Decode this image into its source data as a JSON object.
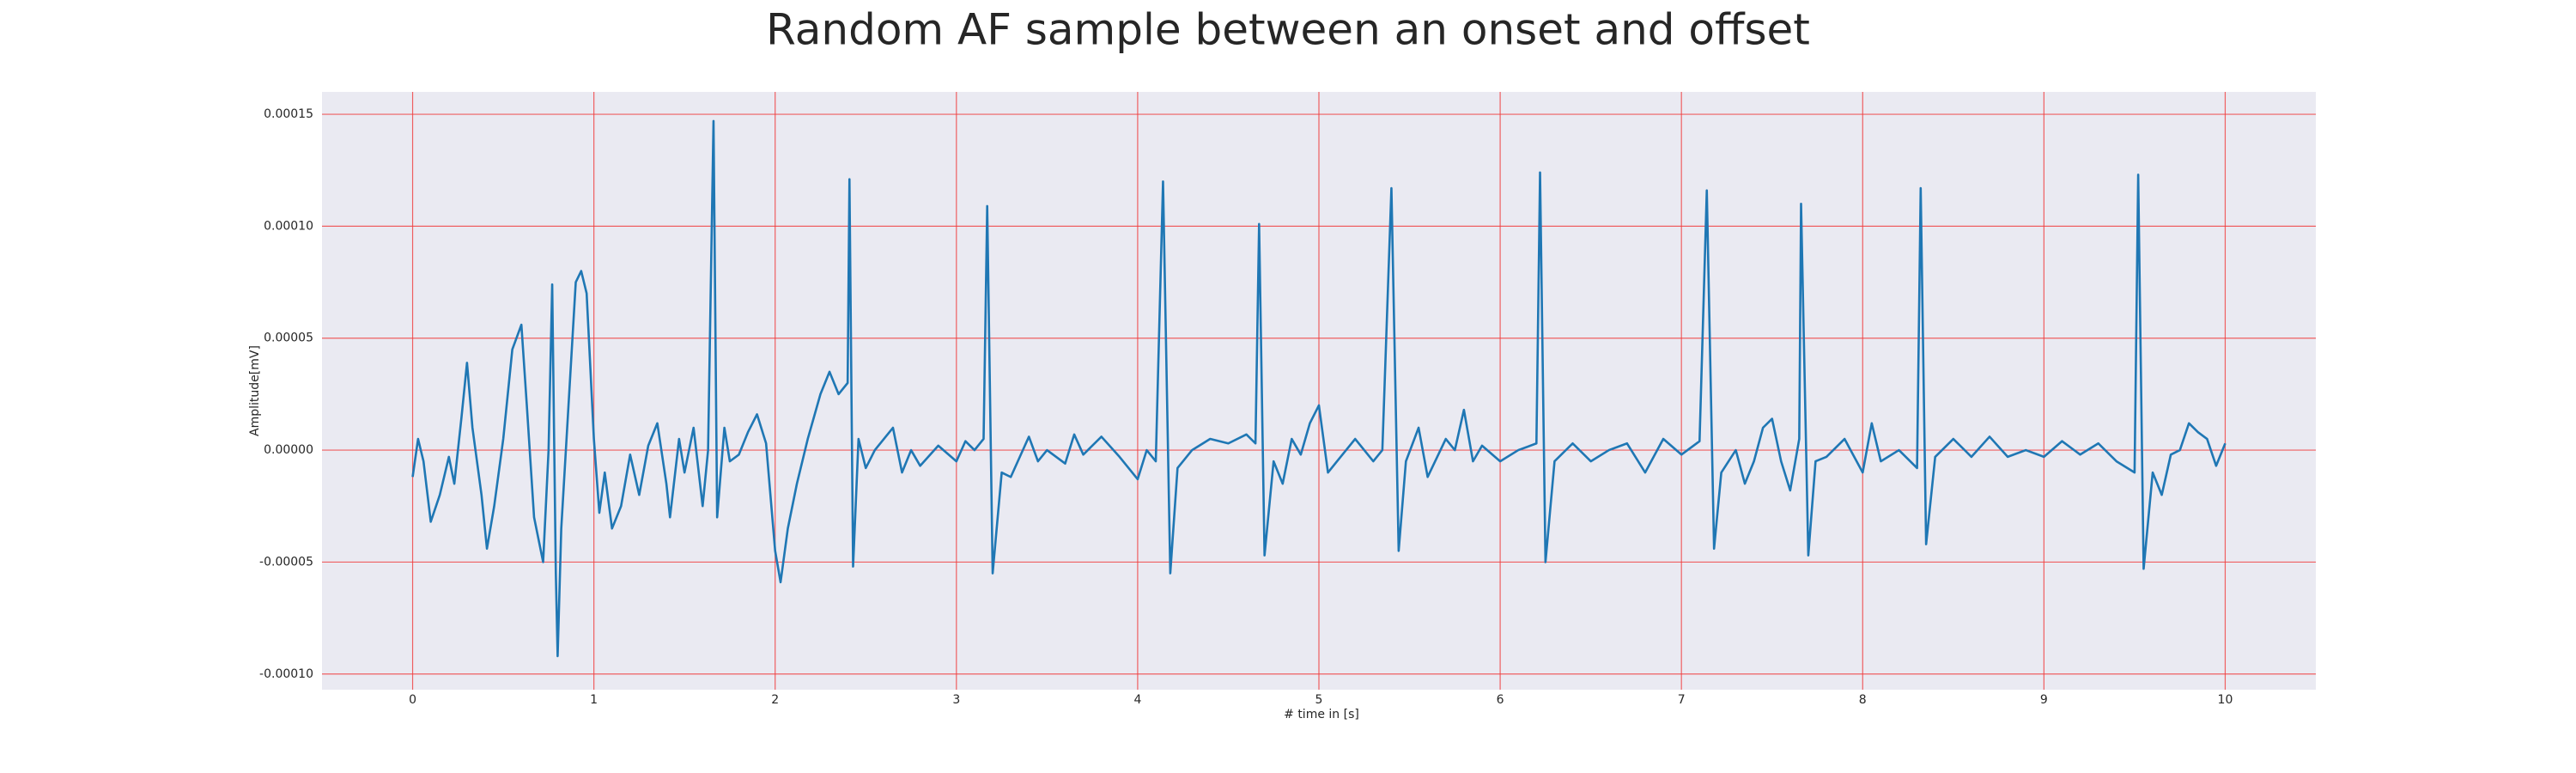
{
  "chart_data": {
    "type": "line",
    "title": "Random AF sample between an onset and offset",
    "x_label": "# time in [s]",
    "y_label": "Amplitude[mV]",
    "xlim": [
      -0.5,
      10.5
    ],
    "ylim": [
      -0.000107,
      0.00016
    ],
    "xticks": [
      0,
      1,
      2,
      3,
      4,
      5,
      6,
      7,
      8,
      9,
      10
    ],
    "yticks": [
      {
        "value": -0.0001,
        "label": "-0.00010"
      },
      {
        "value": -5e-05,
        "label": "-0.00005"
      },
      {
        "value": 0,
        "label": "0.00000"
      },
      {
        "value": 5e-05,
        "label": "0.00005"
      },
      {
        "value": 0.0001,
        "label": "0.00010"
      },
      {
        "value": 0.00015,
        "label": "0.00015"
      }
    ],
    "grid": true,
    "grid_color": "#f03c3c",
    "background": "#eaeaf2",
    "color": "#1f77b4",
    "x": [
      0,
      0.03,
      0.06,
      0.1,
      0.15,
      0.2,
      0.23,
      0.27,
      0.3,
      0.33,
      0.38,
      0.41,
      0.45,
      0.5,
      0.55,
      0.6,
      0.63,
      0.67,
      0.72,
      0.75,
      0.77,
      0.79,
      0.8,
      0.82,
      0.86,
      0.9,
      0.93,
      0.96,
      1.0,
      1.03,
      1.06,
      1.1,
      1.15,
      1.2,
      1.25,
      1.3,
      1.35,
      1.4,
      1.42,
      1.47,
      1.5,
      1.55,
      1.6,
      1.63,
      1.66,
      1.68,
      1.72,
      1.75,
      1.8,
      1.85,
      1.9,
      1.95,
      2.0,
      2.03,
      2.07,
      2.12,
      2.18,
      2.25,
      2.3,
      2.35,
      2.4,
      2.41,
      2.43,
      2.46,
      2.5,
      2.55,
      2.6,
      2.65,
      2.7,
      2.75,
      2.8,
      2.9,
      3.0,
      3.05,
      3.1,
      3.15,
      3.17,
      3.2,
      3.25,
      3.3,
      3.35,
      3.4,
      3.45,
      3.5,
      3.6,
      3.65,
      3.7,
      3.8,
      3.9,
      4.0,
      4.05,
      4.1,
      4.14,
      4.18,
      4.22,
      4.3,
      4.4,
      4.5,
      4.6,
      4.65,
      4.67,
      4.7,
      4.75,
      4.8,
      4.85,
      4.9,
      4.95,
      5.0,
      5.05,
      5.1,
      5.2,
      5.3,
      5.35,
      5.4,
      5.44,
      5.48,
      5.55,
      5.6,
      5.7,
      5.75,
      5.8,
      5.85,
      5.9,
      6.0,
      6.1,
      6.2,
      6.22,
      6.25,
      6.3,
      6.4,
      6.5,
      6.6,
      6.7,
      6.8,
      6.9,
      7.0,
      7.1,
      7.14,
      7.18,
      7.22,
      7.3,
      7.35,
      7.4,
      7.45,
      7.5,
      7.55,
      7.6,
      7.65,
      7.66,
      7.7,
      7.74,
      7.8,
      7.9,
      8.0,
      8.05,
      8.1,
      8.2,
      8.3,
      8.32,
      8.35,
      8.4,
      8.5,
      8.6,
      8.7,
      8.8,
      8.9,
      9.0,
      9.1,
      9.2,
      9.3,
      9.4,
      9.5,
      9.52,
      9.55,
      9.6,
      9.65,
      9.7,
      9.75,
      9.8,
      9.85,
      9.9,
      9.95,
      10.0
    ],
    "values": [
      -1.2e-05,
      5e-06,
      -5e-06,
      -3.2e-05,
      -2e-05,
      -3e-06,
      -1.5e-05,
      1.5e-05,
      3.9e-05,
      1e-05,
      -2e-05,
      -4.4e-05,
      -2.5e-05,
      5e-06,
      4.5e-05,
      5.6e-05,
      2e-05,
      -3e-05,
      -5e-05,
      0,
      7.4e-05,
      -5.5e-05,
      -9.2e-05,
      -3.5e-05,
      2e-05,
      7.5e-05,
      8e-05,
      7e-05,
      5e-06,
      -2.8e-05,
      -1e-05,
      -3.5e-05,
      -2.5e-05,
      -2e-06,
      -2e-05,
      2e-06,
      1.2e-05,
      -1.5e-05,
      -3e-05,
      5e-06,
      -1e-05,
      1e-05,
      -2.5e-05,
      0,
      0.000147,
      -3e-05,
      1e-05,
      -5e-06,
      -2e-06,
      8e-06,
      1.6e-05,
      3e-06,
      -4.5e-05,
      -5.9e-05,
      -3.5e-05,
      -1.5e-05,
      5e-06,
      2.5e-05,
      3.5e-05,
      2.5e-05,
      3e-05,
      0.000121,
      -5.2e-05,
      5e-06,
      -8e-06,
      0,
      5e-06,
      1e-05,
      -1e-05,
      0,
      -7e-06,
      2e-06,
      -5e-06,
      4e-06,
      0,
      5e-06,
      0.000109,
      -5.5e-05,
      -1e-05,
      -1.2e-05,
      -3e-06,
      6e-06,
      -5e-06,
      0,
      -6e-06,
      7e-06,
      -2e-06,
      6e-06,
      -3e-06,
      -1.3e-05,
      0,
      -5e-06,
      0.00012,
      -5.5e-05,
      -8e-06,
      0,
      5e-06,
      3e-06,
      7e-06,
      3e-06,
      0.000101,
      -4.7e-05,
      -5e-06,
      -1.5e-05,
      5e-06,
      -2e-06,
      1.2e-05,
      2e-05,
      -1e-05,
      -5e-06,
      5e-06,
      -5e-06,
      0,
      0.000117,
      -4.5e-05,
      -5e-06,
      1e-05,
      -1.2e-05,
      5e-06,
      0,
      1.8e-05,
      -5e-06,
      2e-06,
      -5e-06,
      0,
      3e-06,
      0.000124,
      -5e-05,
      -5e-06,
      3e-06,
      -5e-06,
      0,
      3e-06,
      -1e-05,
      5e-06,
      -2e-06,
      4e-06,
      0.000116,
      -4.4e-05,
      -1e-05,
      0,
      -1.5e-05,
      -5e-06,
      1e-05,
      1.4e-05,
      -5e-06,
      -1.8e-05,
      5e-06,
      0.00011,
      -4.7e-05,
      -5e-06,
      -3e-06,
      5e-06,
      -1e-05,
      1.2e-05,
      -5e-06,
      0,
      -8e-06,
      0.000117,
      -4.2e-05,
      -3e-06,
      5e-06,
      -3e-06,
      6e-06,
      -3e-06,
      0,
      -3e-06,
      4e-06,
      -2e-06,
      3e-06,
      -5e-06,
      -1e-05,
      0.000123,
      -5.3e-05,
      -1e-05,
      -2e-05,
      -2e-06,
      0,
      1.2e-05,
      8e-06,
      5e-06,
      -7e-06,
      3e-06
    ]
  }
}
